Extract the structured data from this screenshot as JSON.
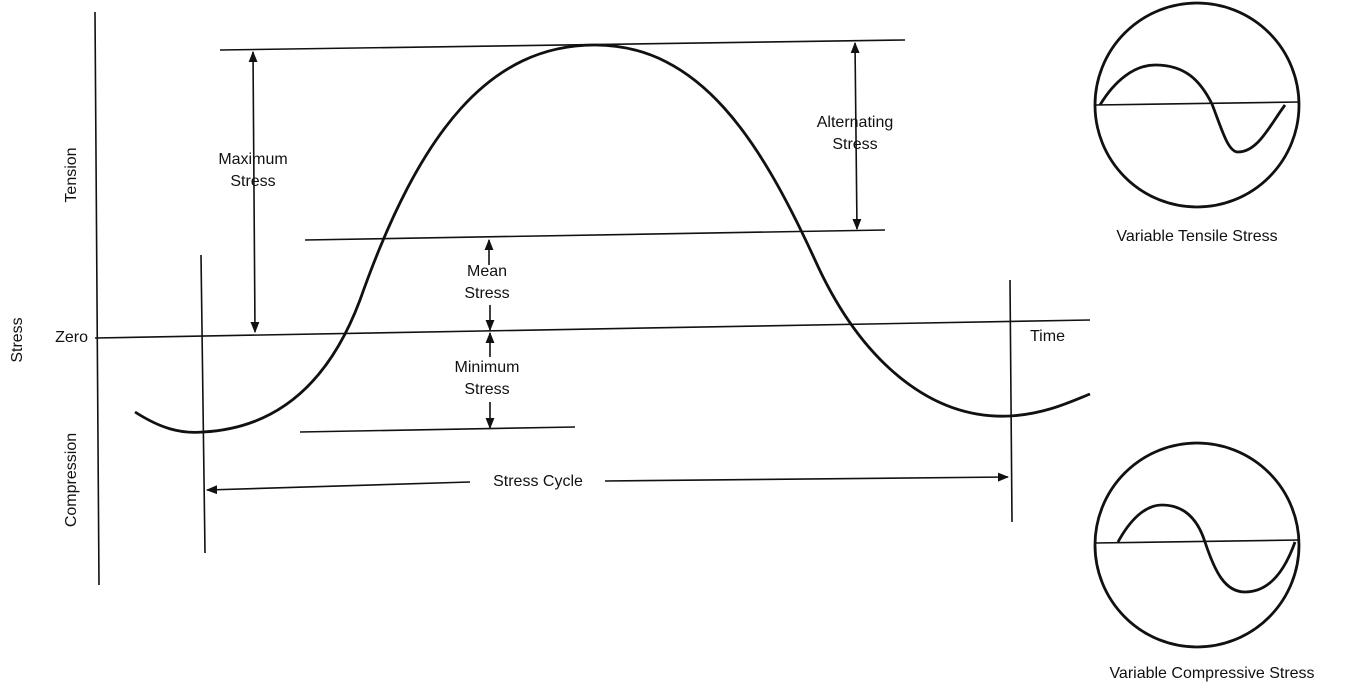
{
  "diagram": {
    "axis_labels": {
      "tension": "Tension",
      "stress": "Stress",
      "compression": "Compression",
      "zero": "Zero",
      "time": "Time"
    },
    "annotations": {
      "maximum_stress": [
        "Maximum",
        "Stress"
      ],
      "alternating_stress": [
        "Alternating",
        "Stress"
      ],
      "mean_stress": [
        "Mean",
        "Stress"
      ],
      "minimum_stress": [
        "Minimum",
        "Stress"
      ],
      "stress_cycle": "Stress Cycle"
    },
    "insets": [
      "Variable Tensile Stress",
      "Variable Compressive Stress"
    ]
  }
}
